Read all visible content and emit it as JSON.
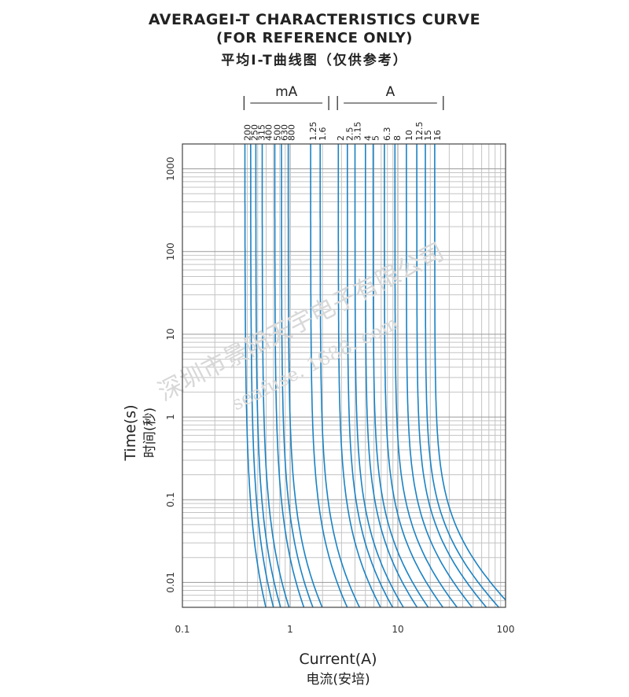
{
  "title_line1": "AVERAGEI-T CHARACTERISTICS CURVE",
  "title_line2": "(FOR REFERENCE ONLY)",
  "title_line3": "平均I-T曲线图（仅供参考）",
  "watermark_cn": "深圳市景阳天宇电子有限公司",
  "watermark_url": "seafuse. 1688. com",
  "chart_data": {
    "type": "line",
    "title": "AVERAGEI-T CHARACTERISTICS CURVE",
    "xlabel": "Current(A)",
    "xlabel_cn": "电流(安培)",
    "ylabel": "Time(s)",
    "ylabel_cn": "时间(秒)",
    "x_scale": "log",
    "y_scale": "log",
    "xlim": [
      0.1,
      100
    ],
    "ylim": [
      0.005,
      2000
    ],
    "x_ticks": [
      "0.1",
      "1",
      "10",
      "100"
    ],
    "x_tick_values": [
      0.1,
      1,
      10,
      100
    ],
    "y_ticks": [
      "0.01",
      "0.1",
      "1",
      "10",
      "100",
      "1000"
    ],
    "y_tick_values": [
      0.01,
      0.1,
      1,
      10,
      100,
      1000
    ],
    "grid": true,
    "line_color": "#1a82c4",
    "unit_groups": [
      {
        "label": "mA",
        "ratings": [
          "200",
          "250",
          "315",
          "400",
          "500",
          "630",
          "800",
          "1.25",
          "1.6"
        ]
      },
      {
        "label": "A",
        "ratings": [
          "2",
          "2.5",
          "3.15",
          "4",
          "5",
          "6.3",
          "8",
          "10",
          "12.5",
          "15",
          "16"
        ]
      }
    ],
    "series": [
      {
        "rating": "200",
        "i_min": 0.38,
        "slope": 0.5
      },
      {
        "rating": "250",
        "i_min": 0.43,
        "slope": 0.52
      },
      {
        "rating": "315",
        "i_min": 0.48,
        "slope": 0.54
      },
      {
        "rating": "400",
        "i_min": 0.55,
        "slope": 0.56
      },
      {
        "rating": "500",
        "i_min": 0.72,
        "slope": 0.58
      },
      {
        "rating": "630",
        "i_min": 0.83,
        "slope": 0.6
      },
      {
        "rating": "800",
        "i_min": 0.96,
        "slope": 0.62
      },
      {
        "rating": "1.25",
        "i_min": 1.55,
        "slope": 0.64
      },
      {
        "rating": "1.6",
        "i_min": 1.9,
        "slope": 0.66
      },
      {
        "rating": "2",
        "i_min": 2.8,
        "slope": 0.68
      },
      {
        "rating": "2.5",
        "i_min": 3.4,
        "slope": 0.7
      },
      {
        "rating": "3.15",
        "i_min": 4.0,
        "slope": 0.72
      },
      {
        "rating": "4",
        "i_min": 5.0,
        "slope": 0.74
      },
      {
        "rating": "5",
        "i_min": 5.9,
        "slope": 0.76
      },
      {
        "rating": "6.3",
        "i_min": 7.5,
        "slope": 0.78
      },
      {
        "rating": "8",
        "i_min": 9.4,
        "slope": 0.8
      },
      {
        "rating": "10",
        "i_min": 12.0,
        "slope": 0.82
      },
      {
        "rating": "12.5",
        "i_min": 15.0,
        "slope": 0.84
      },
      {
        "rating": "15",
        "i_min": 18.0,
        "slope": 0.86
      },
      {
        "rating": "16",
        "i_min": 22.0,
        "slope": 0.88
      }
    ]
  }
}
